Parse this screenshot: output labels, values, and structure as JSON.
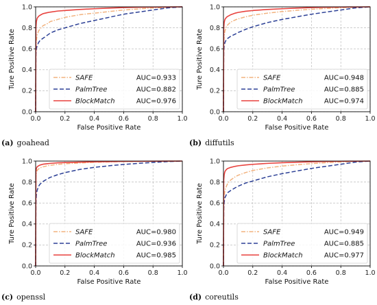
{
  "chart_data": [
    {
      "type": "line",
      "caption": {
        "letter": "(a)",
        "name": "goahead"
      },
      "xlabel": "False Positive Rate",
      "ylabel": "Ture Positive Rate",
      "xlim": [
        0,
        1
      ],
      "ylim": [
        0,
        1
      ],
      "x_ticks": [
        "0.0",
        "0.2",
        "0.4",
        "0.6",
        "0.8",
        "1.0"
      ],
      "y_ticks": [
        "0.0",
        "0.2",
        "0.4",
        "0.6",
        "0.8",
        "1.0"
      ],
      "grid": true,
      "legend_position": "bottom-right",
      "series": [
        {
          "name": "SAFE",
          "auc": "AUC=0.933",
          "color": "#f2b27e",
          "style": "dashdot",
          "x": [
            0,
            0.002,
            0.005,
            0.01,
            0.02,
            0.03,
            0.05,
            0.08,
            0.1,
            0.15,
            0.2,
            0.3,
            0.4,
            0.5,
            0.6,
            0.7,
            0.8,
            0.9,
            1.0
          ],
          "y": [
            0,
            0.6,
            0.68,
            0.73,
            0.77,
            0.79,
            0.82,
            0.84,
            0.86,
            0.88,
            0.9,
            0.925,
            0.94,
            0.955,
            0.97,
            0.98,
            0.99,
            0.995,
            1.0
          ]
        },
        {
          "name": "PalmTree",
          "auc": "AUC=0.882",
          "color": "#2b3f95",
          "style": "dashed",
          "x": [
            0,
            0.002,
            0.005,
            0.01,
            0.02,
            0.03,
            0.05,
            0.08,
            0.1,
            0.15,
            0.2,
            0.3,
            0.4,
            0.5,
            0.6,
            0.7,
            0.8,
            0.9,
            1.0
          ],
          "y": [
            0,
            0.55,
            0.6,
            0.63,
            0.66,
            0.68,
            0.7,
            0.73,
            0.75,
            0.78,
            0.8,
            0.84,
            0.87,
            0.9,
            0.93,
            0.95,
            0.97,
            0.99,
            1.0
          ]
        },
        {
          "name": "BlockMatch",
          "auc": "AUC=0.976",
          "color": "#e8413d",
          "style": "solid",
          "x": [
            0,
            0.002,
            0.005,
            0.01,
            0.02,
            0.03,
            0.05,
            0.08,
            0.1,
            0.15,
            0.2,
            0.3,
            0.4,
            0.5,
            0.6,
            0.7,
            0.8,
            0.9,
            1.0
          ],
          "y": [
            0,
            0.8,
            0.86,
            0.89,
            0.91,
            0.92,
            0.935,
            0.945,
            0.95,
            0.96,
            0.965,
            0.975,
            0.982,
            0.988,
            0.993,
            0.996,
            0.998,
            0.999,
            1.0
          ]
        }
      ]
    },
    {
      "type": "line",
      "caption": {
        "letter": "(b)",
        "name": "diffutils"
      },
      "xlabel": "False Positive Rate",
      "ylabel": "Ture Positive Rate",
      "xlim": [
        0,
        1
      ],
      "ylim": [
        0,
        1
      ],
      "x_ticks": [
        "0.0",
        "0.2",
        "0.4",
        "0.6",
        "0.8",
        "1.0"
      ],
      "y_ticks": [
        "0.0",
        "0.2",
        "0.4",
        "0.6",
        "0.8",
        "1.0"
      ],
      "grid": true,
      "legend_position": "bottom-right",
      "series": [
        {
          "name": "SAFE",
          "auc": "AUC=0.948",
          "color": "#f2b27e",
          "style": "dashdot",
          "x": [
            0,
            0.002,
            0.005,
            0.01,
            0.02,
            0.03,
            0.05,
            0.08,
            0.1,
            0.15,
            0.2,
            0.3,
            0.4,
            0.5,
            0.6,
            0.7,
            0.8,
            0.9,
            1.0
          ],
          "y": [
            0,
            0.65,
            0.72,
            0.77,
            0.81,
            0.83,
            0.855,
            0.875,
            0.885,
            0.905,
            0.92,
            0.94,
            0.955,
            0.967,
            0.977,
            0.985,
            0.992,
            0.997,
            1.0
          ]
        },
        {
          "name": "PalmTree",
          "auc": "AUC=0.885",
          "color": "#2b3f95",
          "style": "dashed",
          "x": [
            0,
            0.002,
            0.005,
            0.01,
            0.02,
            0.03,
            0.05,
            0.08,
            0.1,
            0.15,
            0.2,
            0.3,
            0.4,
            0.5,
            0.6,
            0.7,
            0.8,
            0.9,
            1.0
          ],
          "y": [
            0,
            0.58,
            0.63,
            0.66,
            0.69,
            0.7,
            0.72,
            0.74,
            0.755,
            0.785,
            0.81,
            0.85,
            0.88,
            0.905,
            0.93,
            0.95,
            0.97,
            0.99,
            1.0
          ]
        },
        {
          "name": "BlockMatch",
          "auc": "AUC=0.974",
          "color": "#e8413d",
          "style": "solid",
          "x": [
            0,
            0.002,
            0.005,
            0.01,
            0.02,
            0.03,
            0.05,
            0.08,
            0.1,
            0.15,
            0.2,
            0.3,
            0.4,
            0.5,
            0.6,
            0.7,
            0.8,
            0.9,
            1.0
          ],
          "y": [
            0,
            0.8,
            0.85,
            0.88,
            0.9,
            0.91,
            0.925,
            0.94,
            0.947,
            0.958,
            0.965,
            0.975,
            0.982,
            0.988,
            0.993,
            0.996,
            0.998,
            0.999,
            1.0
          ]
        }
      ]
    },
    {
      "type": "line",
      "caption": {
        "letter": "(c)",
        "name": "openssl"
      },
      "xlabel": "False Positive Rate",
      "ylabel": "Ture Positive Rate",
      "xlim": [
        0,
        1
      ],
      "ylim": [
        0,
        1
      ],
      "x_ticks": [
        "0.0",
        "0.2",
        "0.4",
        "0.6",
        "0.8",
        "1.0"
      ],
      "y_ticks": [
        "0.0",
        "0.2",
        "0.4",
        "0.6",
        "0.8",
        "1.0"
      ],
      "grid": true,
      "legend_position": "bottom-right",
      "series": [
        {
          "name": "SAFE",
          "auc": "AUC=0.980",
          "color": "#f2b27e",
          "style": "dashdot",
          "x": [
            0,
            0.002,
            0.005,
            0.01,
            0.02,
            0.03,
            0.05,
            0.08,
            0.1,
            0.15,
            0.2,
            0.3,
            0.4,
            0.5,
            0.6,
            0.7,
            0.8,
            0.9,
            1.0
          ],
          "y": [
            0,
            0.85,
            0.89,
            0.91,
            0.925,
            0.935,
            0.945,
            0.955,
            0.96,
            0.968,
            0.974,
            0.982,
            0.988,
            0.992,
            0.995,
            0.997,
            0.998,
            0.999,
            1.0
          ]
        },
        {
          "name": "PalmTree",
          "auc": "AUC=0.936",
          "color": "#2b3f95",
          "style": "dashed",
          "x": [
            0,
            0.002,
            0.005,
            0.01,
            0.02,
            0.03,
            0.05,
            0.08,
            0.1,
            0.15,
            0.2,
            0.3,
            0.4,
            0.5,
            0.6,
            0.7,
            0.8,
            0.9,
            1.0
          ],
          "y": [
            0,
            0.6,
            0.68,
            0.72,
            0.76,
            0.78,
            0.805,
            0.83,
            0.845,
            0.87,
            0.89,
            0.92,
            0.94,
            0.955,
            0.968,
            0.978,
            0.987,
            0.995,
            1.0
          ]
        },
        {
          "name": "BlockMatch",
          "auc": "AUC=0.985",
          "color": "#e8413d",
          "style": "solid",
          "x": [
            0,
            0.002,
            0.005,
            0.01,
            0.02,
            0.03,
            0.05,
            0.08,
            0.1,
            0.15,
            0.2,
            0.3,
            0.4,
            0.5,
            0.6,
            0.7,
            0.8,
            0.9,
            1.0
          ],
          "y": [
            0,
            0.9,
            0.93,
            0.945,
            0.955,
            0.962,
            0.97,
            0.975,
            0.978,
            0.983,
            0.986,
            0.99,
            0.993,
            0.995,
            0.997,
            0.998,
            0.999,
            0.9995,
            1.0
          ]
        }
      ]
    },
    {
      "type": "line",
      "caption": {
        "letter": "(d)",
        "name": "coreutils"
      },
      "xlabel": "False Positive Rate",
      "ylabel": "Ture Positive Rate",
      "xlim": [
        0,
        1
      ],
      "ylim": [
        0,
        1
      ],
      "x_ticks": [
        "0.0",
        "0.2",
        "0.4",
        "0.6",
        "0.8",
        "1.0"
      ],
      "y_ticks": [
        "0.0",
        "0.2",
        "0.4",
        "0.6",
        "0.8",
        "1.0"
      ],
      "grid": true,
      "legend_position": "bottom-right",
      "series": [
        {
          "name": "SAFE",
          "auc": "AUC=0.949",
          "color": "#f2b27e",
          "style": "dashdot",
          "x": [
            0,
            0.002,
            0.005,
            0.01,
            0.02,
            0.03,
            0.05,
            0.08,
            0.1,
            0.15,
            0.2,
            0.3,
            0.4,
            0.5,
            0.6,
            0.7,
            0.8,
            0.9,
            1.0
          ],
          "y": [
            0,
            0.6,
            0.67,
            0.72,
            0.76,
            0.79,
            0.82,
            0.85,
            0.865,
            0.89,
            0.91,
            0.935,
            0.952,
            0.965,
            0.976,
            0.985,
            0.992,
            0.997,
            1.0
          ]
        },
        {
          "name": "PalmTree",
          "auc": "AUC=0.885",
          "color": "#2b3f95",
          "style": "dashed",
          "x": [
            0,
            0.002,
            0.005,
            0.01,
            0.02,
            0.03,
            0.05,
            0.08,
            0.1,
            0.15,
            0.2,
            0.3,
            0.4,
            0.5,
            0.6,
            0.7,
            0.8,
            0.9,
            1.0
          ],
          "y": [
            0,
            0.55,
            0.61,
            0.65,
            0.68,
            0.7,
            0.72,
            0.745,
            0.76,
            0.79,
            0.81,
            0.85,
            0.88,
            0.905,
            0.93,
            0.95,
            0.97,
            0.99,
            1.0
          ]
        },
        {
          "name": "BlockMatch",
          "auc": "AUC=0.977",
          "color": "#e8413d",
          "style": "solid",
          "x": [
            0,
            0.002,
            0.005,
            0.01,
            0.02,
            0.03,
            0.05,
            0.08,
            0.1,
            0.15,
            0.2,
            0.3,
            0.4,
            0.5,
            0.6,
            0.7,
            0.8,
            0.9,
            1.0
          ],
          "y": [
            0,
            0.82,
            0.87,
            0.9,
            0.92,
            0.93,
            0.94,
            0.95,
            0.955,
            0.963,
            0.969,
            0.978,
            0.984,
            0.989,
            0.993,
            0.996,
            0.998,
            0.999,
            1.0
          ]
        }
      ]
    }
  ]
}
